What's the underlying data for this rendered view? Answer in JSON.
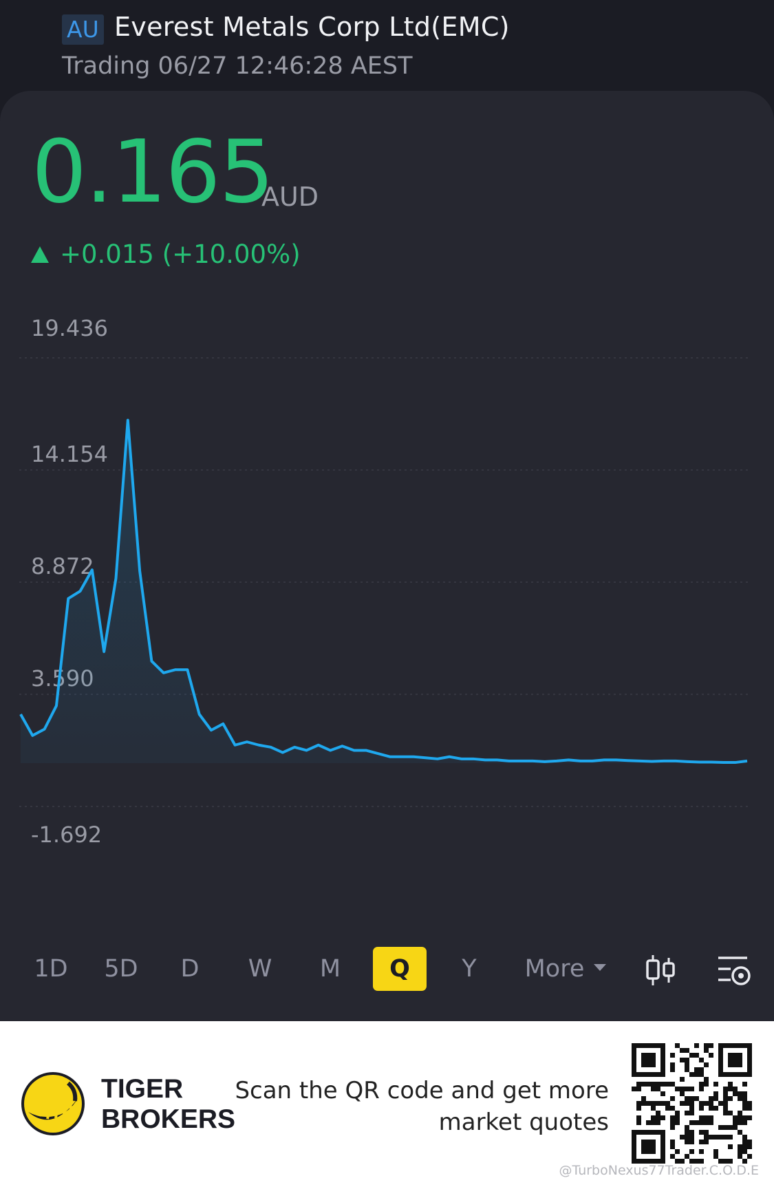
{
  "header": {
    "market": "AU",
    "title": "Everest Metals Corp Ltd(EMC)",
    "status": "Trading 06/27 12:46:28 AEST"
  },
  "quote": {
    "price": "0.165",
    "currency": "AUD",
    "change": "+0.015 (+10.00%)",
    "direction": "up",
    "color_up": "#27c176"
  },
  "chart_data": {
    "type": "area",
    "title": "",
    "xlabel": "",
    "ylabel": "",
    "ylim": [
      -1.692,
      19.436
    ],
    "y_ticks": [
      "19.436",
      "14.154",
      "8.872",
      "3.590",
      "-1.692"
    ],
    "grid": true,
    "line_color": "#1fa8ee",
    "series": [
      {
        "values": [
          2.65,
          1.65,
          1.95,
          3.05,
          8.1,
          8.45,
          9.45,
          5.6,
          9.05,
          16.5,
          9.4,
          5.15,
          4.6,
          4.75,
          4.75,
          2.65,
          1.9,
          2.2,
          1.2,
          1.35,
          1.2,
          1.1,
          0.85,
          1.1,
          0.95,
          1.2,
          0.95,
          1.15,
          0.95,
          0.95,
          0.8,
          0.65,
          0.65,
          0.65,
          0.6,
          0.55,
          0.65,
          0.55,
          0.55,
          0.5,
          0.5,
          0.45,
          0.45,
          0.45,
          0.42,
          0.45,
          0.5,
          0.45,
          0.45,
          0.5,
          0.5,
          0.47,
          0.45,
          0.43,
          0.45,
          0.45,
          0.42,
          0.4,
          0.4,
          0.38,
          0.38,
          0.45
        ]
      }
    ]
  },
  "periods": [
    "1D",
    "5D",
    "D",
    "W",
    "M",
    "Q",
    "Y",
    "More"
  ],
  "active_period": "Q",
  "tools": {
    "candle_icon": "candlestick-icon",
    "settings_icon": "indicator-settings-icon"
  },
  "footer": {
    "brand_line1": "TIGER",
    "brand_line2": "BROKERS",
    "promo_line1": "Scan the QR code and get more",
    "promo_line2": "market quotes",
    "watermark": "@TurboNexus77Trader.C.O.D.E"
  }
}
